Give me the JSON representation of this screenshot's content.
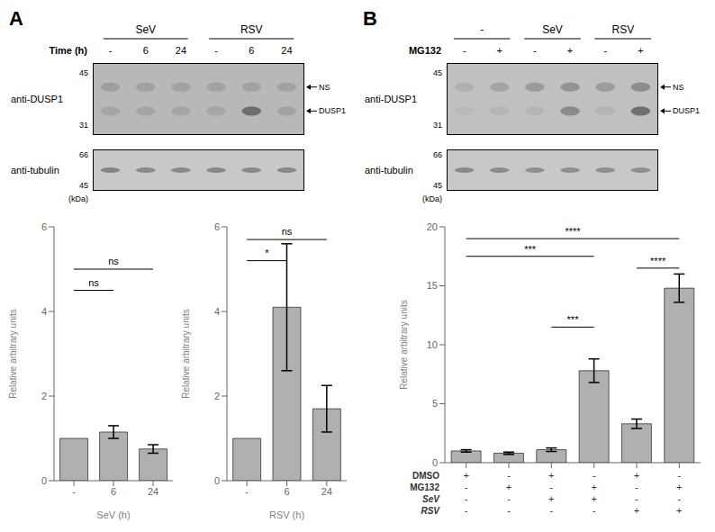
{
  "chart_data": [
    {
      "type": "blot",
      "title": "A",
      "ylabel": "anti-DUSP1",
      "xlabel": "Time (h)",
      "categories": [
        "-",
        "6",
        "24",
        "-",
        "6",
        "24"
      ],
      "groups": [
        "SeV",
        "RSV"
      ],
      "color": "#b8b8b8",
      "yticks": [
        45,
        31
      ],
      "series": [
        {
          "name": "NS",
          "color": "#555555",
          "values": [
            0.25,
            0.22,
            0.22,
            0.22,
            0.22,
            0.22
          ]
        },
        {
          "name": "DUSP1",
          "color": "#555555",
          "values": [
            0.18,
            0.2,
            0.18,
            0.18,
            0.75,
            0.22
          ]
        }
      ]
    },
    {
      "type": "blot",
      "ylabel": "anti-tubulin",
      "color": "#c8c8c8",
      "yticks": [
        66,
        45
      ],
      "annotations": [
        "(kDa)"
      ],
      "series": [
        {
          "color": "#555555",
          "values": [
            0.6,
            0.55,
            0.55,
            0.55,
            0.55,
            0.55
          ]
        }
      ]
    },
    {
      "type": "bar",
      "categories": [
        "-",
        "6",
        "24"
      ],
      "values": [
        1.0,
        1.15,
        0.75
      ],
      "errors": [
        0.0,
        0.15,
        0.1
      ],
      "color": "#b0b0b0",
      "xlabel": "SeV (h)",
      "ylabel": "Relative arbitrary units",
      "ylim": [
        0,
        6
      ],
      "yticks": [
        0,
        2,
        4,
        6
      ],
      "significance": [
        {
          "x1": 0,
          "x2": 1,
          "y": 4.5,
          "text": "ns",
          "text_y": 4.6
        },
        {
          "x1": 0,
          "x2": 2,
          "y": 5.0,
          "text": "ns",
          "text_y": 5.1
        }
      ]
    },
    {
      "type": "bar",
      "categories": [
        "-",
        "6",
        "24"
      ],
      "values": [
        1.0,
        4.1,
        1.7
      ],
      "errors": [
        0.0,
        1.5,
        0.55
      ],
      "color": "#b0b0b0",
      "xlabel": "RSV (h)",
      "ylabel": "Relative arbitrary units",
      "ylim": [
        0,
        6
      ],
      "yticks": [
        0,
        2,
        4,
        6
      ],
      "significance": [
        {
          "x1": 0,
          "x2": 1,
          "y": 5.2,
          "text": "*",
          "text_y": 5.3
        },
        {
          "x1": 0,
          "x2": 2,
          "y": 5.7,
          "text": "ns",
          "text_y": 5.8
        }
      ]
    },
    {
      "type": "blot",
      "title": "B",
      "ylabel": "anti-DUSP1",
      "xlabel": "MG132",
      "categories": [
        "-",
        "+",
        "-",
        "+",
        "-",
        "+"
      ],
      "groups": [
        "-",
        "SeV",
        "RSV"
      ],
      "color": "#c0c0c0",
      "yticks": [
        45,
        31
      ],
      "series": [
        {
          "name": "NS",
          "color": "#555555",
          "values": [
            0.15,
            0.25,
            0.35,
            0.42,
            0.32,
            0.48
          ]
        },
        {
          "name": "DUSP1",
          "color": "#555555",
          "values": [
            0.05,
            0.1,
            0.1,
            0.5,
            0.1,
            0.75
          ]
        }
      ]
    },
    {
      "type": "blot",
      "ylabel": "anti-tubulin",
      "color": "#c8c8c8",
      "yticks": [
        66,
        45
      ],
      "annotations": [
        "(kDa)"
      ],
      "series": [
        {
          "color": "#555555",
          "values": [
            0.55,
            0.52,
            0.5,
            0.5,
            0.5,
            0.5
          ]
        }
      ]
    },
    {
      "type": "bar",
      "categories": [
        null,
        null,
        null,
        null,
        null,
        null
      ],
      "values": [
        1.0,
        0.8,
        1.1,
        7.8,
        3.3,
        14.8
      ],
      "errors": [
        0.1,
        0.1,
        0.15,
        1.0,
        0.4,
        1.2
      ],
      "color": "#b0b0b0",
      "ylabel": "Relative arbitrary units",
      "ylim": [
        0,
        20
      ],
      "yticks": [
        0,
        5,
        10,
        15,
        20
      ],
      "x_rows": [
        {
          "name": "DMSO",
          "values": [
            "+",
            "-",
            "+",
            "-",
            "+",
            "-"
          ]
        },
        {
          "name": "MG132",
          "values": [
            "-",
            "+",
            "-",
            "+",
            "-",
            "+"
          ]
        },
        {
          "name": "SeV",
          "values": [
            "-",
            "-",
            "+",
            "+",
            "-",
            "-"
          ]
        },
        {
          "name": "RSV",
          "values": [
            "-",
            "-",
            "-",
            "-",
            "+",
            "+"
          ]
        }
      ],
      "significance": [
        {
          "x1": 0,
          "x2": 3,
          "y": 17.5,
          "text": "***",
          "text_y": 17.8
        },
        {
          "x1": 0,
          "x2": 5,
          "y": 19.0,
          "text": "****",
          "text_y": 19.3
        },
        {
          "x1": 2,
          "x2": 3,
          "y": 11.5,
          "text": "***",
          "text_y": 11.8
        },
        {
          "x1": 4,
          "x2": 5,
          "y": 16.5,
          "text": "****",
          "text_y": 16.8
        }
      ]
    }
  ]
}
